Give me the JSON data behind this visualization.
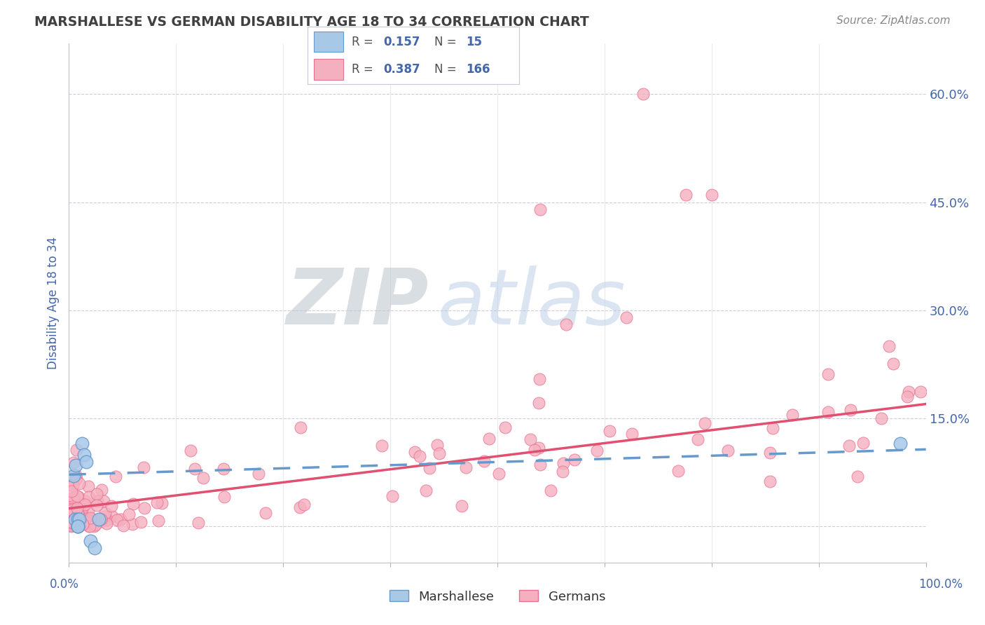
{
  "title": "MARSHALLESE VS GERMAN DISABILITY AGE 18 TO 34 CORRELATION CHART",
  "source": "Source: ZipAtlas.com",
  "ylabel": "Disability Age 18 to 34",
  "ytick_vals": [
    0.0,
    0.15,
    0.3,
    0.45,
    0.6
  ],
  "ytick_labels": [
    "",
    "15.0%",
    "30.0%",
    "45.0%",
    "60.0%"
  ],
  "xlim": [
    0.0,
    1.0
  ],
  "ylim": [
    -0.05,
    0.65
  ],
  "watermark": "ZIPatlas",
  "R1_val": "0.157",
  "N1_val": "15",
  "R2_val": "0.387",
  "N2_val": "166",
  "marshallese_color": "#a8c8e8",
  "marshallese_edge": "#6699cc",
  "german_color": "#f5b0c0",
  "german_edge": "#e87090",
  "line_marshallese_color": "#6699cc",
  "line_german_color": "#e05070",
  "background_color": "#ffffff",
  "grid_color": "#c8c8d8",
  "title_color": "#404040",
  "axis_label_color": "#4466aa",
  "source_color": "#888888"
}
